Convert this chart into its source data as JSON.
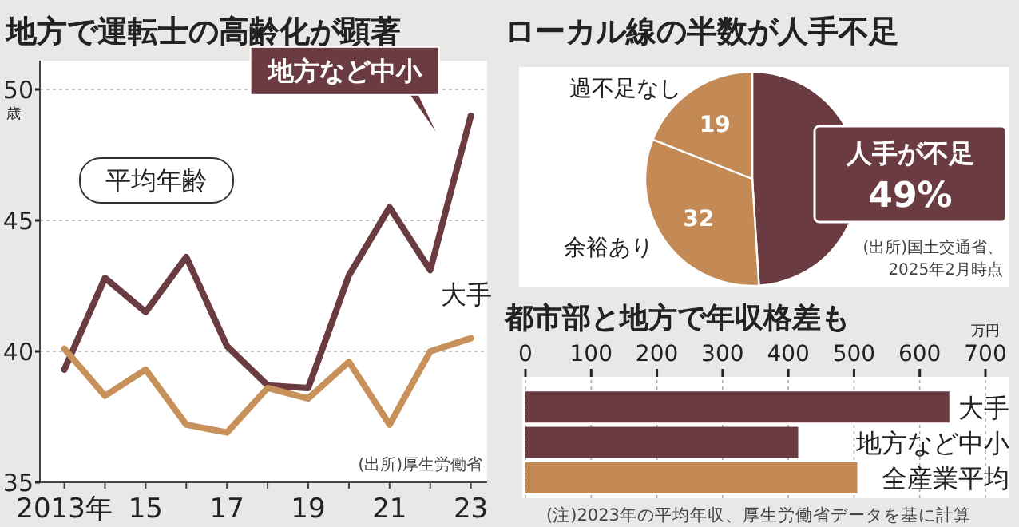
{
  "chart_data": [
    {
      "type": "line",
      "title": "地方で運転士の高齢化が顕著",
      "ylabel": "歳",
      "x": [
        2013,
        2014,
        2015,
        2016,
        2017,
        2018,
        2019,
        2020,
        2021,
        2022,
        2023
      ],
      "xlim": [
        2012.4,
        2023.4
      ],
      "ylim": [
        35,
        50
      ],
      "xticks": [
        {
          "value": 2013,
          "label": "2013年"
        },
        {
          "value": 2014,
          "label": null
        },
        {
          "value": 2015,
          "label": "15"
        },
        {
          "value": 2016,
          "label": null
        },
        {
          "value": 2017,
          "label": "17"
        },
        {
          "value": 2018,
          "label": null
        },
        {
          "value": 2019,
          "label": "19"
        },
        {
          "value": 2020,
          "label": null
        },
        {
          "value": 2021,
          "label": "21"
        },
        {
          "value": 2022,
          "label": null
        },
        {
          "value": 2023,
          "label": "23"
        }
      ],
      "yticks": [
        35,
        40,
        45,
        50
      ],
      "grid": "y",
      "series": [
        {
          "name": "地方など中小",
          "color": "#6b3b42",
          "values": [
            39.3,
            42.8,
            41.5,
            43.6,
            40.2,
            38.7,
            38.6,
            42.9,
            45.5,
            43.1,
            49.0
          ]
        },
        {
          "name": "大手",
          "color": "#c8915a",
          "values": [
            40.1,
            38.3,
            39.3,
            37.2,
            36.9,
            38.6,
            38.2,
            39.6,
            37.2,
            40.0,
            40.5
          ]
        }
      ],
      "annotations": [
        "平均年齢",
        "(出所)厚生労働省"
      ]
    },
    {
      "type": "pie",
      "title": "ローカル線の半数が人手不足",
      "categories": [
        "人手が不足",
        "余裕あり",
        "過不足なし"
      ],
      "values": [
        49,
        32,
        19
      ],
      "colors": [
        "#6b3b42",
        "#c48a55",
        "#c48a55"
      ],
      "value_labels": [
        "49%",
        "32",
        "19"
      ],
      "annotations": [
        "(出所)国土交通省、2025年2月時点"
      ]
    },
    {
      "type": "bar",
      "orientation": "horizontal",
      "title": "都市部と地方で年収格差も",
      "xlabel": "万円",
      "categories": [
        "大手",
        "地方など中小",
        "全産業平均"
      ],
      "values": [
        645,
        415,
        505
      ],
      "colors": [
        "#6b3b42",
        "#6b3b42",
        "#c48a55"
      ],
      "xlim": [
        0,
        700
      ],
      "xticks": [
        0,
        100,
        200,
        300,
        400,
        500,
        600,
        700
      ],
      "grid": "x",
      "annotations": [
        "(注)2023年の平均年収、厚生労働省データを基に計算"
      ]
    }
  ]
}
